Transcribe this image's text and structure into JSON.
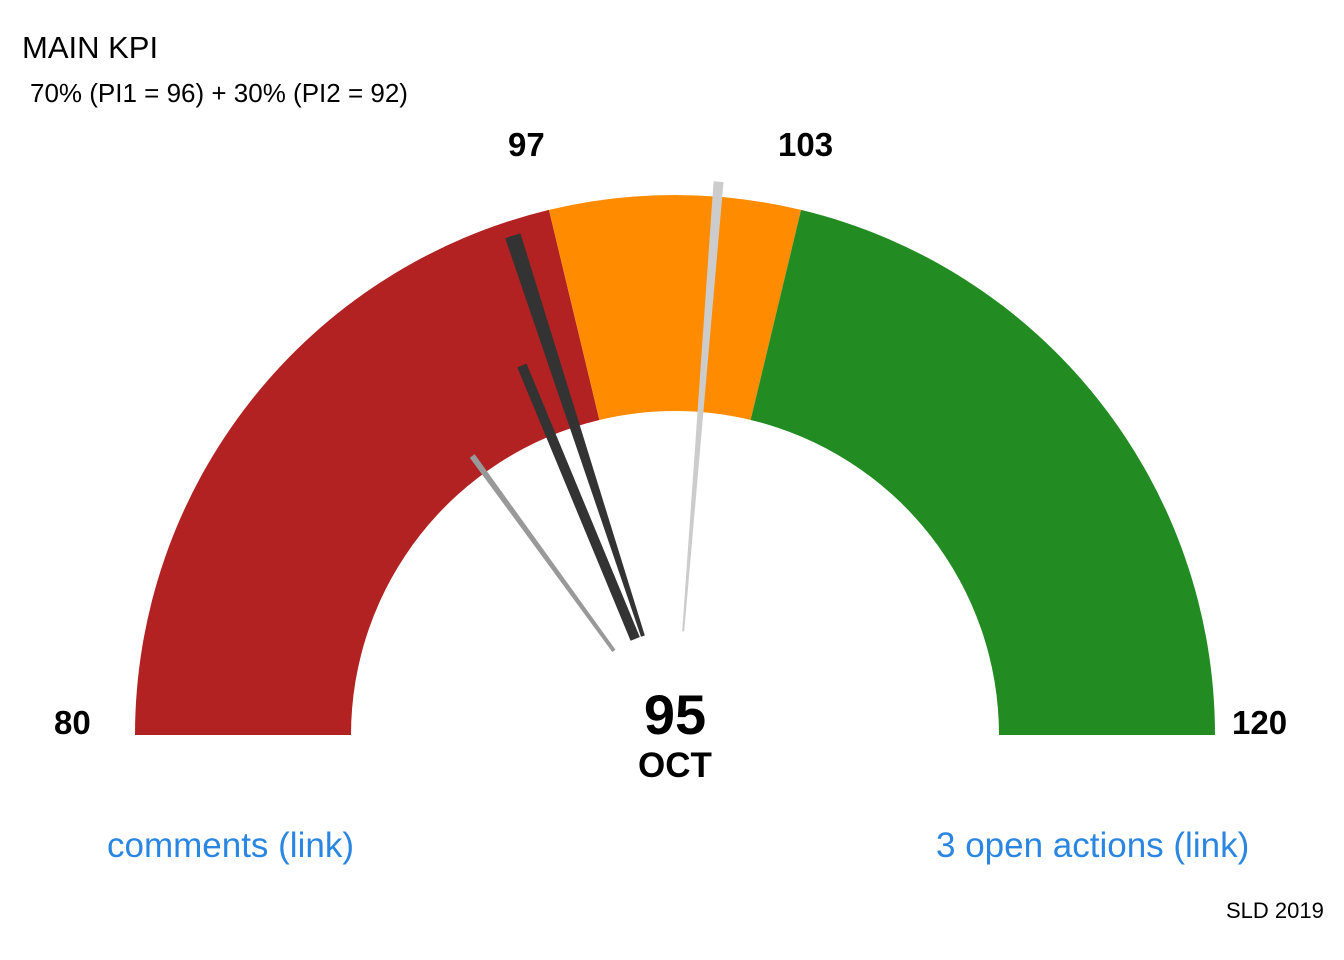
{
  "title": "MAIN KPI",
  "subtitle": "70% (PI1 = 96) + 30% (PI2 = 92)",
  "value_label": "95",
  "period_label": "OCT",
  "links": {
    "comments": "comments (link)",
    "actions": "3 open actions (link)"
  },
  "credit": "SLD 2019",
  "chart_data": {
    "type": "gauge",
    "min": 80,
    "max": 120,
    "min_label": "80",
    "max_label": "120",
    "threshold_labels": [
      "97",
      "103"
    ],
    "bands": [
      {
        "from": 80,
        "to": 97,
        "color": "#b22222"
      },
      {
        "from": 97,
        "to": 103,
        "color": "#ff8c00"
      },
      {
        "from": 103,
        "to": 120,
        "color": "#228b22"
      }
    ],
    "needles": [
      {
        "value": 95,
        "color": "#333333"
      },
      {
        "value": 92,
        "color": "#999999"
      },
      {
        "value": 96,
        "color": "#333333"
      },
      {
        "value": 101,
        "color": "#cccccc"
      }
    ],
    "value": 95,
    "period": "OCT"
  }
}
